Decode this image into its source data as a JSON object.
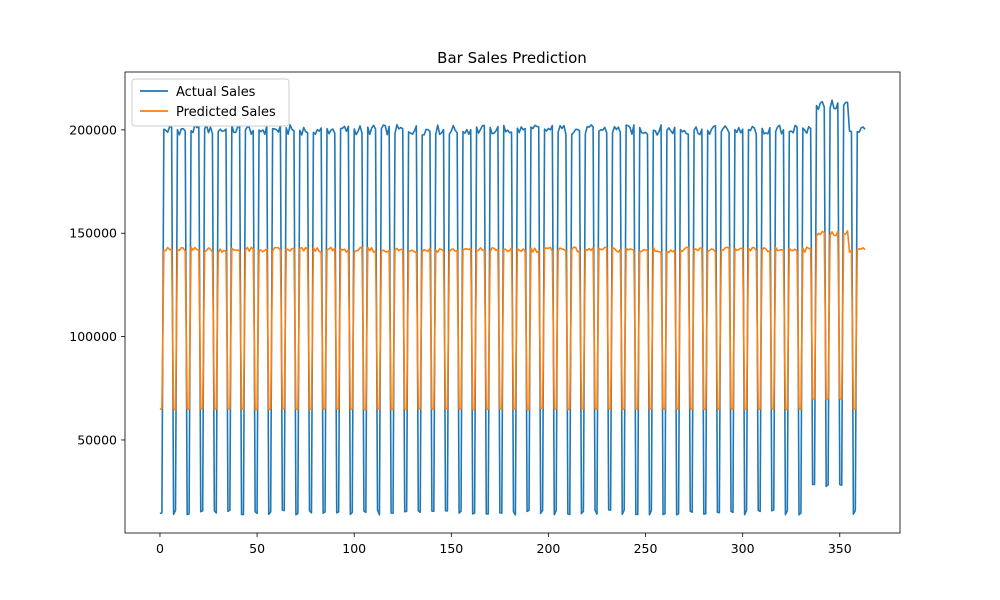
{
  "chart_data": {
    "type": "line",
    "title": "Bar Sales Prediction",
    "xlabel": "",
    "ylabel": "",
    "xlim": [
      -18,
      381
    ],
    "ylim": [
      5000,
      228000
    ],
    "x_ticks": [
      0,
      50,
      100,
      150,
      200,
      250,
      300,
      350
    ],
    "y_ticks": [
      50000,
      100000,
      150000,
      200000
    ],
    "grid": false,
    "legend_position": "upper left",
    "colors": {
      "actual": "#1f77b4",
      "predicted": "#ff7f0e"
    },
    "legend": [
      "Actual Sales",
      "Predicted Sales"
    ],
    "weekly_pattern": {
      "description_of_values": "repeating 7-day pattern, x = 0..363",
      "actual_high": 200000,
      "actual_low": 15000,
      "predicted_high": 142000,
      "predicted_low": 65000,
      "actual_high_late": 212000,
      "actual_low_late": 28000,
      "predicted_high_late": 150000,
      "predicted_low_late": 70000,
      "late_period_x": [
        336,
        354
      ]
    },
    "series": [
      {
        "name": "Actual Sales",
        "x_start": 0,
        "x_end": 363
      },
      {
        "name": "Predicted Sales",
        "x_start": 0,
        "x_end": 363
      }
    ]
  }
}
